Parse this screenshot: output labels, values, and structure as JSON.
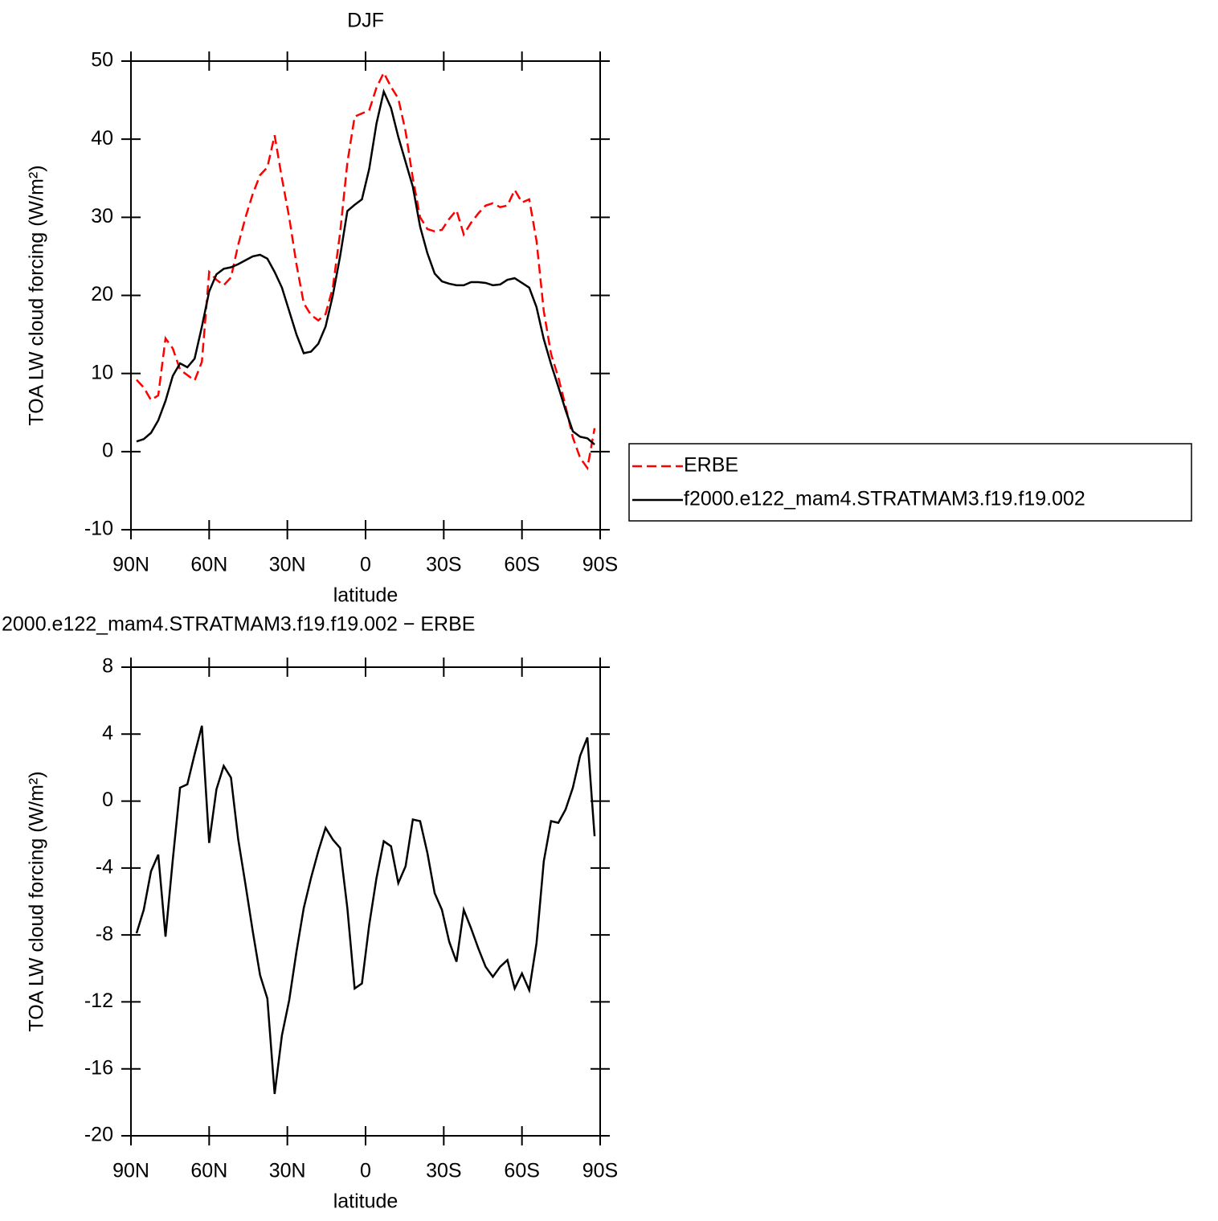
{
  "chart_data": [
    {
      "type": "line",
      "title": "DJF",
      "x_label": "latitude",
      "y_label": "TOA LW cloud forcing (W/m²)",
      "x": [
        87.86,
        85.1,
        82.31,
        79.53,
        76.74,
        73.95,
        71.16,
        68.37,
        65.58,
        62.79,
        60,
        57.21,
        54.42,
        51.63,
        48.84,
        46.05,
        43.26,
        40.47,
        37.67,
        34.88,
        32.09,
        29.3,
        26.51,
        23.72,
        20.93,
        18.14,
        15.35,
        12.56,
        9.77,
        6.98,
        4.19,
        1.4,
        -1.4,
        -4.19,
        -6.98,
        -9.77,
        -12.56,
        -15.35,
        -18.14,
        -20.93,
        -23.72,
        -26.51,
        -29.3,
        -32.09,
        -34.88,
        -37.67,
        -40.47,
        -43.26,
        -46.05,
        -48.84,
        -51.63,
        -54.42,
        -57.21,
        -60,
        -62.79,
        -65.58,
        -68.37,
        -71.16,
        -73.95,
        -76.74,
        -79.53,
        -82.31,
        -85.1,
        -87.86
      ],
      "xlim": [
        90,
        -90
      ],
      "xticks": [
        {
          "value": 90,
          "label": "90N"
        },
        {
          "value": 60,
          "label": "60N"
        },
        {
          "value": 30,
          "label": "30N"
        },
        0,
        {
          "value": -30,
          "label": "30S"
        },
        {
          "value": -60,
          "label": "60S"
        },
        {
          "value": -90,
          "label": "90S"
        }
      ],
      "ylim": [
        -10,
        50
      ],
      "yticks": [
        -10,
        0,
        10,
        20,
        30,
        40,
        50
      ],
      "legend": "right",
      "series": [
        {
          "name": "ERBE",
          "color": "#ff0000",
          "dash": "dashed",
          "values": [
            9.2,
            8.2,
            6.6,
            7.2,
            14.5,
            13.2,
            10.5,
            9.8,
            9.1,
            11.5,
            23.0,
            22.0,
            21.3,
            22.3,
            26.5,
            30.0,
            33.0,
            35.4,
            36.4,
            40.5,
            35.0,
            30.0,
            24.0,
            19.0,
            17.5,
            16.8,
            17.6,
            21.0,
            28.0,
            37.0,
            42.9,
            43.3,
            43.7,
            46.6,
            48.5,
            46.7,
            45.2,
            41.0,
            35.0,
            30.0,
            28.5,
            28.2,
            28.4,
            29.8,
            30.9,
            27.8,
            29.3,
            30.5,
            31.5,
            31.8,
            31.3,
            31.5,
            33.5,
            31.9,
            32.3,
            27.0,
            18.0,
            12.5,
            9.5,
            5.8,
            1.8,
            -0.8,
            -2.1,
            3.0
          ]
        },
        {
          "name": "f2000.e122_mam4.STRATMAM3.f19.f19.002",
          "color": "#000000",
          "dash": "solid",
          "values": [
            1.3,
            1.6,
            2.4,
            4.0,
            6.5,
            9.7,
            11.3,
            10.8,
            11.9,
            16.0,
            20.5,
            22.7,
            23.4,
            23.6,
            24.0,
            24.5,
            25.0,
            25.2,
            24.7,
            23.0,
            21.0,
            18.0,
            15.0,
            12.6,
            12.8,
            13.8,
            16.0,
            20.0,
            25.0,
            30.8,
            31.6,
            32.3,
            36.2,
            42.0,
            46.1,
            44.0,
            40.3,
            37.1,
            33.9,
            28.8,
            25.4,
            22.8,
            21.8,
            21.5,
            21.3,
            21.3,
            21.7,
            21.7,
            21.6,
            21.3,
            21.4,
            22.0,
            22.2,
            21.6,
            21.0,
            18.5,
            14.4,
            11.2,
            8.3,
            5.3,
            2.6,
            1.9,
            1.7,
            0.9
          ]
        }
      ]
    },
    {
      "type": "line",
      "title": "2000.e122_mam4.STRATMAM3.f19.f19.002 − ERBE",
      "x_label": "latitude",
      "y_label": "TOA LW cloud forcing (W/m²)",
      "x": [
        87.86,
        85.1,
        82.31,
        79.53,
        76.74,
        73.95,
        71.16,
        68.37,
        65.58,
        62.79,
        60,
        57.21,
        54.42,
        51.63,
        48.84,
        46.05,
        43.26,
        40.47,
        37.67,
        34.88,
        32.09,
        29.3,
        26.51,
        23.72,
        20.93,
        18.14,
        15.35,
        12.56,
        9.77,
        6.98,
        4.19,
        1.4,
        -1.4,
        -4.19,
        -6.98,
        -9.77,
        -12.56,
        -15.35,
        -18.14,
        -20.93,
        -23.72,
        -26.51,
        -29.3,
        -32.09,
        -34.88,
        -37.67,
        -40.47,
        -43.26,
        -46.05,
        -48.84,
        -51.63,
        -54.42,
        -57.21,
        -60,
        -62.79,
        -65.58,
        -68.37,
        -71.16,
        -73.95,
        -76.74,
        -79.53,
        -82.31,
        -85.1,
        -87.86
      ],
      "xlim": [
        90,
        -90
      ],
      "xticks": [
        {
          "value": 90,
          "label": "90N"
        },
        {
          "value": 60,
          "label": "60N"
        },
        {
          "value": 30,
          "label": "30N"
        },
        0,
        {
          "value": -30,
          "label": "30S"
        },
        {
          "value": -60,
          "label": "60S"
        },
        {
          "value": -90,
          "label": "90S"
        }
      ],
      "ylim": [
        -20,
        8
      ],
      "yticks": [
        -20,
        -16,
        -12,
        -8,
        -4,
        0,
        4,
        8
      ],
      "series": [
        {
          "color": "#000000",
          "dash": "solid",
          "values": [
            -7.9,
            -6.5,
            -4.2,
            -3.2,
            -8.1,
            -3.5,
            0.8,
            1.0,
            2.8,
            4.5,
            -2.5,
            0.7,
            2.1,
            1.4,
            -2.3,
            -5.0,
            -7.8,
            -10.4,
            -11.8,
            -17.5,
            -14.0,
            -11.9,
            -9.0,
            -6.4,
            -4.6,
            -3.0,
            -1.6,
            -2.3,
            -2.8,
            -6.4,
            -11.2,
            -10.9,
            -7.4,
            -4.6,
            -2.4,
            -2.7,
            -4.9,
            -3.9,
            -1.1,
            -1.2,
            -3.1,
            -5.5,
            -6.5,
            -8.4,
            -9.6,
            -6.5,
            -7.6,
            -8.8,
            -9.9,
            -10.5,
            -9.9,
            -9.5,
            -11.2,
            -10.3,
            -11.3,
            -8.5,
            -3.6,
            -1.2,
            -1.3,
            -0.5,
            0.8,
            2.7,
            3.8,
            -2.1
          ]
        }
      ]
    }
  ]
}
